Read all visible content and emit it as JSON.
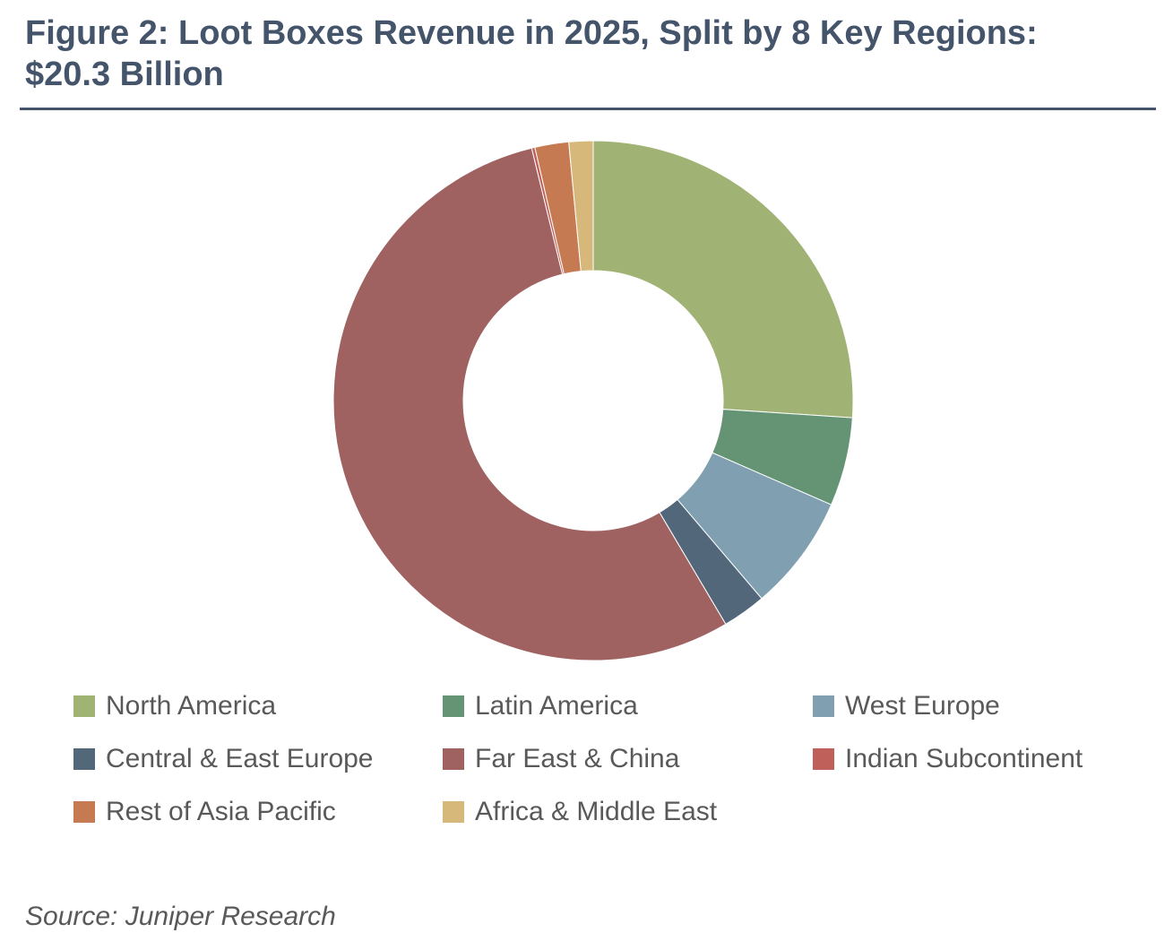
{
  "header": {
    "title_line1": "Figure 2: Loot Boxes Revenue in 2025, Split by 8 Key Regions:",
    "title_line2": "$20.3 Billion"
  },
  "chart_data": {
    "type": "pie",
    "style": "donut",
    "title": "Figure 2: Loot Boxes Revenue in 2025, Split by 8 Key Regions: $20.3 Billion",
    "unit": "% share (estimated)",
    "legend_position": "bottom",
    "start_angle": "12 o'clock, clockwise",
    "slices": [
      {
        "label": "North America",
        "value": 26.0,
        "color": "#a1b374"
      },
      {
        "label": "Latin America",
        "value": 5.5,
        "color": "#659474"
      },
      {
        "label": "West Europe",
        "value": 7.2,
        "color": "#809fb0"
      },
      {
        "label": "Central & East Europe",
        "value": 2.7,
        "color": "#52677a"
      },
      {
        "label": "Far East & China",
        "value": 54.6,
        "color": "#9f6261"
      },
      {
        "label": "Indian Subcontinent",
        "value": 0.2,
        "color": "#c0605a"
      },
      {
        "label": "Rest of Asia Pacific",
        "value": 2.1,
        "color": "#c67a52"
      },
      {
        "label": "Africa & Middle East",
        "value": 1.5,
        "color": "#d6b97a"
      }
    ]
  },
  "legend": {
    "items": [
      {
        "label": "North America",
        "color": "#a1b374"
      },
      {
        "label": "Latin America",
        "color": "#659474"
      },
      {
        "label": "West Europe",
        "color": "#809fb0"
      },
      {
        "label": "Central & East Europe",
        "color": "#52677a"
      },
      {
        "label": "Far East & China",
        "color": "#9f6261"
      },
      {
        "label": "Indian Subcontinent",
        "color": "#c0605a"
      },
      {
        "label": "Rest of Asia Pacific",
        "color": "#c67a52"
      },
      {
        "label": "Africa & Middle East",
        "color": "#d6b97a"
      }
    ]
  },
  "footer": {
    "source": "Source: Juniper Research"
  }
}
